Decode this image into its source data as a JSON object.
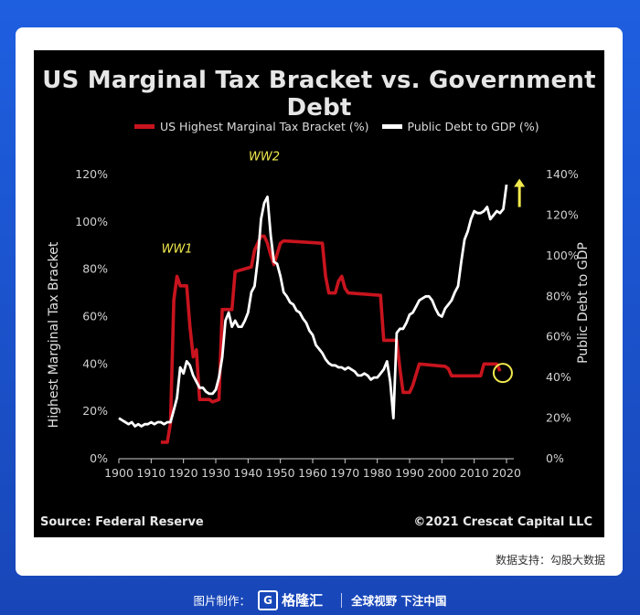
{
  "chart_data": {
    "type": "line",
    "title": "US Marginal Tax Bracket vs. Government Debt",
    "xlabel": "",
    "ylabel_left": "Highest Marginal Tax Bracket",
    "ylabel_right": "Public Debt to GDP",
    "xlim": [
      1900,
      2020
    ],
    "x_ticks": [
      "1900",
      "1910",
      "1920",
      "1930",
      "1940",
      "1950",
      "1960",
      "1970",
      "1980",
      "1990",
      "2000",
      "2010",
      "2020"
    ],
    "x_tick_values": [
      1900,
      1910,
      1920,
      1930,
      1940,
      1950,
      1960,
      1970,
      1980,
      1990,
      2000,
      2010,
      2020
    ],
    "ylim_left": [
      0,
      120
    ],
    "ylim_right": [
      0,
      140
    ],
    "y_left_ticks": [
      "0%",
      "20%",
      "40%",
      "60%",
      "80%",
      "100%",
      "120%"
    ],
    "y_left_values": [
      0,
      20,
      40,
      60,
      80,
      100,
      120
    ],
    "y_right_ticks": [
      "0%",
      "20%",
      "40%",
      "60%",
      "80%",
      "100%",
      "120%",
      "140%"
    ],
    "y_right_values": [
      0,
      20,
      40,
      60,
      80,
      100,
      120,
      140
    ],
    "series": [
      {
        "name": "US Highest Marginal Tax Bracket (%)",
        "axis": "left",
        "color": "#c8141e",
        "points": [
          [
            1913,
            7
          ],
          [
            1915,
            7
          ],
          [
            1916,
            15
          ],
          [
            1917,
            67
          ],
          [
            1918,
            77
          ],
          [
            1919,
            73
          ],
          [
            1921,
            73
          ],
          [
            1922,
            56
          ],
          [
            1923,
            43
          ],
          [
            1924,
            46
          ],
          [
            1925,
            25
          ],
          [
            1928,
            25
          ],
          [
            1929,
            24
          ],
          [
            1931,
            25
          ],
          [
            1932,
            63
          ],
          [
            1935,
            63
          ],
          [
            1936,
            79
          ],
          [
            1941,
            81
          ],
          [
            1942,
            88
          ],
          [
            1944,
            94
          ],
          [
            1945,
            94
          ],
          [
            1946,
            91
          ],
          [
            1947,
            86
          ],
          [
            1948,
            82
          ],
          [
            1950,
            91
          ],
          [
            1951,
            92
          ],
          [
            1963,
            91
          ],
          [
            1964,
            77
          ],
          [
            1965,
            70
          ],
          [
            1967,
            70
          ],
          [
            1968,
            75
          ],
          [
            1969,
            77
          ],
          [
            1970,
            72
          ],
          [
            1971,
            70
          ],
          [
            1981,
            69
          ],
          [
            1982,
            50
          ],
          [
            1986,
            50
          ],
          [
            1987,
            38
          ],
          [
            1988,
            28
          ],
          [
            1990,
            28
          ],
          [
            1991,
            31
          ],
          [
            1993,
            40
          ],
          [
            2001,
            39
          ],
          [
            2002,
            38
          ],
          [
            2003,
            35
          ],
          [
            2012,
            35
          ],
          [
            2013,
            40
          ],
          [
            2017,
            40
          ],
          [
            2018,
            37
          ]
        ]
      },
      {
        "name": "Public Debt to GDP (%)",
        "axis": "right",
        "color": "#ffffff",
        "points": [
          [
            1900,
            20
          ],
          [
            1901,
            19
          ],
          [
            1902,
            18
          ],
          [
            1903,
            17
          ],
          [
            1904,
            18
          ],
          [
            1905,
            16
          ],
          [
            1906,
            17
          ],
          [
            1907,
            16
          ],
          [
            1908,
            17
          ],
          [
            1909,
            17
          ],
          [
            1910,
            18
          ],
          [
            1911,
            17
          ],
          [
            1912,
            18
          ],
          [
            1913,
            18
          ],
          [
            1914,
            17
          ],
          [
            1915,
            18
          ],
          [
            1916,
            18
          ],
          [
            1917,
            24
          ],
          [
            1918,
            30
          ],
          [
            1919,
            45
          ],
          [
            1920,
            42
          ],
          [
            1921,
            48
          ],
          [
            1922,
            46
          ],
          [
            1923,
            41
          ],
          [
            1924,
            38
          ],
          [
            1925,
            35
          ],
          [
            1926,
            35
          ],
          [
            1927,
            33
          ],
          [
            1928,
            32
          ],
          [
            1929,
            32
          ],
          [
            1930,
            34
          ],
          [
            1931,
            40
          ],
          [
            1932,
            50
          ],
          [
            1933,
            68
          ],
          [
            1934,
            72
          ],
          [
            1935,
            65
          ],
          [
            1936,
            68
          ],
          [
            1937,
            65
          ],
          [
            1938,
            65
          ],
          [
            1939,
            68
          ],
          [
            1940,
            72
          ],
          [
            1941,
            82
          ],
          [
            1942,
            85
          ],
          [
            1943,
            98
          ],
          [
            1944,
            118
          ],
          [
            1945,
            126
          ],
          [
            1946,
            129
          ],
          [
            1947,
            110
          ],
          [
            1948,
            97
          ],
          [
            1949,
            96
          ],
          [
            1950,
            90
          ],
          [
            1951,
            82
          ],
          [
            1952,
            80
          ],
          [
            1953,
            77
          ],
          [
            1954,
            76
          ],
          [
            1955,
            73
          ],
          [
            1956,
            72
          ],
          [
            1957,
            69
          ],
          [
            1958,
            67
          ],
          [
            1959,
            63
          ],
          [
            1960,
            61
          ],
          [
            1961,
            56
          ],
          [
            1962,
            54
          ],
          [
            1963,
            52
          ],
          [
            1964,
            49
          ],
          [
            1965,
            47
          ],
          [
            1966,
            46
          ],
          [
            1967,
            46
          ],
          [
            1968,
            45
          ],
          [
            1969,
            45
          ],
          [
            1970,
            44
          ],
          [
            1971,
            45
          ],
          [
            1972,
            44
          ],
          [
            1973,
            43
          ],
          [
            1974,
            41
          ],
          [
            1975,
            41
          ],
          [
            1976,
            42
          ],
          [
            1977,
            41
          ],
          [
            1978,
            39
          ],
          [
            1979,
            40
          ],
          [
            1980,
            40
          ],
          [
            1981,
            42
          ],
          [
            1982,
            44
          ],
          [
            1983,
            48
          ],
          [
            1984,
            38
          ],
          [
            1985,
            20
          ],
          [
            1986,
            62
          ],
          [
            1987,
            64
          ],
          [
            1988,
            64
          ],
          [
            1989,
            67
          ],
          [
            1990,
            71
          ],
          [
            1991,
            72
          ],
          [
            1992,
            75
          ],
          [
            1993,
            78
          ],
          [
            1994,
            79
          ],
          [
            1995,
            80
          ],
          [
            1996,
            80
          ],
          [
            1997,
            78
          ],
          [
            1998,
            74
          ],
          [
            1999,
            71
          ],
          [
            2000,
            70
          ],
          [
            2001,
            74
          ],
          [
            2002,
            76
          ],
          [
            2003,
            78
          ],
          [
            2004,
            82
          ],
          [
            2005,
            85
          ],
          [
            2006,
            97
          ],
          [
            2007,
            108
          ],
          [
            2008,
            112
          ],
          [
            2009,
            118
          ],
          [
            2010,
            122
          ],
          [
            2011,
            121
          ],
          [
            2012,
            121
          ],
          [
            2013,
            122
          ],
          [
            2014,
            124
          ],
          [
            2015,
            118
          ],
          [
            2016,
            120
          ],
          [
            2017,
            122
          ],
          [
            2018,
            121
          ],
          [
            2019,
            123
          ],
          [
            2020,
            135
          ]
        ]
      }
    ],
    "annotations": [
      {
        "text": "WW1",
        "x": 1918,
        "y_left": 87,
        "color": "#f2e94e"
      },
      {
        "text": "WW2",
        "x": 1945,
        "y_left": 126,
        "color": "#f2e94e"
      }
    ],
    "highlight": {
      "x": 2018,
      "y_left": 37,
      "color": "#f2e94e"
    },
    "arrow": {
      "x": 2024,
      "y_right_from": 124,
      "y_right_to": 138,
      "color": "#f2e94e"
    },
    "source": "Source: Federal Reserve",
    "copyright": "©2021 Crescat Capital LLC"
  },
  "credit": "数据支持：勾股大数据",
  "footer": {
    "made_by": "图片制作：",
    "logo_mark": "G",
    "logo_text": "格隆汇",
    "slogan": "全球视野 下注中国"
  }
}
